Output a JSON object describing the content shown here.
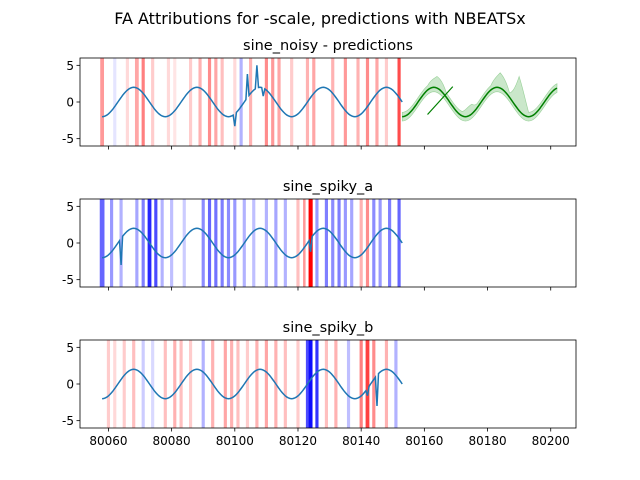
{
  "figure_title": "FA Attributions for -scale, predictions with NBEATSx",
  "chart_data": [
    {
      "type": "line",
      "title": "sine_noisy - predictions",
      "xlim": [
        80051,
        80208
      ],
      "ylim": [
        -6,
        6
      ],
      "yticks": [
        -5,
        0,
        5
      ],
      "xticks": [
        80060,
        80080,
        80100,
        80120,
        80140,
        80160,
        80180,
        80200
      ],
      "show_xtick_labels": false,
      "history": {
        "x_start": 80058,
        "x_end": 80153,
        "period": 20,
        "amplitude": 2.0,
        "spikes": [
          {
            "x": 80100,
            "y": -3.3
          },
          {
            "x": 80104,
            "y": 3.8
          },
          {
            "x": 80107,
            "y": 5.0
          },
          {
            "x": 80109,
            "y": 0.8
          }
        ]
      },
      "prediction": {
        "x_start": 80153,
        "x_end": 80202,
        "period": 20,
        "amplitude": 2.0,
        "extra_segment": [
          {
            "x": 80161,
            "y": -1.7
          },
          {
            "x": 80169,
            "y": 2.1
          }
        ]
      },
      "band": {
        "x_start": 80153,
        "x_end": 80202,
        "spread": 0.6,
        "bumps": [
          {
            "x": 80164,
            "y": 3.5
          },
          {
            "x": 80175,
            "y": -0.3
          },
          {
            "x": 80184,
            "y": 4.0
          },
          {
            "x": 80190,
            "y": 3.5
          }
        ]
      },
      "attribution_bands": [
        {
          "x": 80058,
          "w": 1.2,
          "s": 0.4
        },
        {
          "x": 80062,
          "w": 1,
          "s": -0.1
        },
        {
          "x": 80066,
          "w": 1,
          "s": 0.15
        },
        {
          "x": 80069,
          "w": 1.2,
          "s": 0.35
        },
        {
          "x": 80071,
          "w": 1,
          "s": 0.5
        },
        {
          "x": 80074,
          "w": 1,
          "s": 0.2
        },
        {
          "x": 80079,
          "w": 1,
          "s": 0.15
        },
        {
          "x": 80081,
          "w": 1,
          "s": 0.1
        },
        {
          "x": 80086,
          "w": 1,
          "s": 0.2
        },
        {
          "x": 80089,
          "w": 1,
          "s": 0.3
        },
        {
          "x": 80092,
          "w": 1,
          "s": 0.45
        },
        {
          "x": 80094,
          "w": 1,
          "s": 0.35
        },
        {
          "x": 80096,
          "w": 1,
          "s": 0.25
        },
        {
          "x": 80100,
          "w": 1,
          "s": 0.15
        },
        {
          "x": 80102,
          "w": 1,
          "s": -0.3
        },
        {
          "x": 80105,
          "w": 1,
          "s": 0.3
        },
        {
          "x": 80110,
          "w": 1,
          "s": 0.45
        },
        {
          "x": 80112,
          "w": 1,
          "s": 0.4
        },
        {
          "x": 80114,
          "w": 1,
          "s": 0.35
        },
        {
          "x": 80118,
          "w": 1,
          "s": 0.2
        },
        {
          "x": 80123,
          "w": 1,
          "s": 0.3
        },
        {
          "x": 80125,
          "w": 1,
          "s": 0.35
        },
        {
          "x": 80131,
          "w": 1,
          "s": 0.3
        },
        {
          "x": 80135,
          "w": 1,
          "s": 0.4
        },
        {
          "x": 80139,
          "w": 1,
          "s": 0.3
        },
        {
          "x": 80142,
          "w": 1,
          "s": 0.45
        },
        {
          "x": 80145,
          "w": 1,
          "s": 0.35
        },
        {
          "x": 80148,
          "w": 1,
          "s": 0.2
        },
        {
          "x": 80152,
          "w": 1,
          "s": 0.7
        }
      ]
    },
    {
      "type": "line",
      "title": "sine_spiky_a",
      "xlim": [
        80051,
        80208
      ],
      "ylim": [
        -6,
        6
      ],
      "yticks": [
        -5,
        0,
        5
      ],
      "xticks": [
        80060,
        80080,
        80100,
        80120,
        80140,
        80160,
        80180,
        80200
      ],
      "show_xtick_labels": false,
      "history": {
        "x_start": 80058,
        "x_end": 80153,
        "period": 20,
        "amplitude": 2.0,
        "spikes": [
          {
            "x": 80064,
            "y": -3.0
          },
          {
            "x": 80124,
            "y": -1.2
          }
        ]
      },
      "attribution_bands": [
        {
          "x": 80058,
          "w": 1.5,
          "s": -0.6
        },
        {
          "x": 80061,
          "w": 1,
          "s": -0.4
        },
        {
          "x": 80064,
          "w": 1,
          "s": -0.3
        },
        {
          "x": 80069,
          "w": 1,
          "s": -0.35
        },
        {
          "x": 80071,
          "w": 1,
          "s": -0.5
        },
        {
          "x": 80073,
          "w": 1.2,
          "s": -0.85
        },
        {
          "x": 80075,
          "w": 1,
          "s": -0.7
        },
        {
          "x": 80077,
          "w": 1,
          "s": -0.3
        },
        {
          "x": 80080,
          "w": 1,
          "s": -0.25
        },
        {
          "x": 80084,
          "w": 1,
          "s": -0.2
        },
        {
          "x": 80090,
          "w": 1,
          "s": -0.45
        },
        {
          "x": 80092,
          "w": 1,
          "s": -0.6
        },
        {
          "x": 80094,
          "w": 1,
          "s": -0.55
        },
        {
          "x": 80096,
          "w": 1,
          "s": -0.5
        },
        {
          "x": 80098,
          "w": 1,
          "s": -0.45
        },
        {
          "x": 80100,
          "w": 1,
          "s": -0.4
        },
        {
          "x": 80103,
          "w": 1,
          "s": -0.3
        },
        {
          "x": 80106,
          "w": 1,
          "s": -0.25
        },
        {
          "x": 80110,
          "w": 1,
          "s": -0.3
        },
        {
          "x": 80113,
          "w": 1,
          "s": -0.35
        },
        {
          "x": 80116,
          "w": 1,
          "s": -0.3
        },
        {
          "x": 80120,
          "w": 1,
          "s": 0.25
        },
        {
          "x": 80122,
          "w": 0.8,
          "s": 0.4
        },
        {
          "x": 80124,
          "w": 1.3,
          "s": 1.0
        },
        {
          "x": 80126,
          "w": 1,
          "s": -0.4
        },
        {
          "x": 80129,
          "w": 1,
          "s": -0.5
        },
        {
          "x": 80131,
          "w": 1,
          "s": -0.45
        },
        {
          "x": 80133,
          "w": 1,
          "s": -0.5
        },
        {
          "x": 80135,
          "w": 1,
          "s": -0.4
        },
        {
          "x": 80137,
          "w": 1,
          "s": -0.35
        },
        {
          "x": 80140,
          "w": 1,
          "s": 0.3
        },
        {
          "x": 80142,
          "w": 1,
          "s": 0.45
        },
        {
          "x": 80144,
          "w": 1,
          "s": -0.45
        },
        {
          "x": 80146,
          "w": 1,
          "s": -0.4
        },
        {
          "x": 80149,
          "w": 1,
          "s": -0.5
        },
        {
          "x": 80152,
          "w": 1,
          "s": -0.6
        }
      ]
    },
    {
      "type": "line",
      "title": "sine_spiky_b",
      "xlim": [
        80051,
        80208
      ],
      "ylim": [
        -6,
        6
      ],
      "yticks": [
        -5,
        0,
        5
      ],
      "xticks": [
        80060,
        80080,
        80100,
        80120,
        80140,
        80160,
        80180,
        80200
      ],
      "show_xtick_labels": true,
      "history": {
        "x_start": 80058,
        "x_end": 80153,
        "period": 20,
        "amplitude": 2.0,
        "spikes": [
          {
            "x": 80142,
            "y": -1.6
          },
          {
            "x": 80145,
            "y": -3.0
          }
        ]
      },
      "attribution_bands": [
        {
          "x": 80060,
          "w": 1,
          "s": 0.2
        },
        {
          "x": 80062,
          "w": 1,
          "s": 0.15
        },
        {
          "x": 80065,
          "w": 1,
          "s": 0.2
        },
        {
          "x": 80068,
          "w": 1,
          "s": 0.25
        },
        {
          "x": 80071,
          "w": 1,
          "s": -0.2
        },
        {
          "x": 80074,
          "w": 1,
          "s": -0.15
        },
        {
          "x": 80078,
          "w": 1,
          "s": 0.25
        },
        {
          "x": 80081,
          "w": 1,
          "s": 0.3
        },
        {
          "x": 80083,
          "w": 1,
          "s": 0.25
        },
        {
          "x": 80086,
          "w": 1,
          "s": 0.2
        },
        {
          "x": 80090,
          "w": 1,
          "s": -0.3
        },
        {
          "x": 80093,
          "w": 1,
          "s": 0.3
        },
        {
          "x": 80097,
          "w": 1,
          "s": 0.35
        },
        {
          "x": 80099,
          "w": 1,
          "s": 0.3
        },
        {
          "x": 80101,
          "w": 1,
          "s": 0.25
        },
        {
          "x": 80104,
          "w": 1,
          "s": 0.2
        },
        {
          "x": 80107,
          "w": 1,
          "s": 0.3
        },
        {
          "x": 80110,
          "w": 1,
          "s": 0.35
        },
        {
          "x": 80113,
          "w": 1,
          "s": 0.3
        },
        {
          "x": 80116,
          "w": 1,
          "s": 0.25
        },
        {
          "x": 80120,
          "w": 1,
          "s": 0.2
        },
        {
          "x": 80123,
          "w": 1,
          "s": -0.7
        },
        {
          "x": 80124,
          "w": 1.2,
          "s": -0.95
        },
        {
          "x": 80126,
          "w": 1,
          "s": -0.8
        },
        {
          "x": 80129,
          "w": 1,
          "s": 0.25
        },
        {
          "x": 80132,
          "w": 1,
          "s": 0.3
        },
        {
          "x": 80136,
          "w": 1,
          "s": -0.25
        },
        {
          "x": 80140,
          "w": 1,
          "s": 0.5
        },
        {
          "x": 80142,
          "w": 1.2,
          "s": 0.75
        },
        {
          "x": 80144,
          "w": 1,
          "s": 0.45
        },
        {
          "x": 80148,
          "w": 1,
          "s": 0.3
        },
        {
          "x": 80151,
          "w": 1,
          "s": -0.3
        }
      ]
    }
  ],
  "colors": {
    "history_line": "#1f77b4",
    "prediction_line": "#008000",
    "band_fill": "#2ca02c",
    "positive_attr": "#ff0000",
    "negative_attr": "#0000ff"
  }
}
